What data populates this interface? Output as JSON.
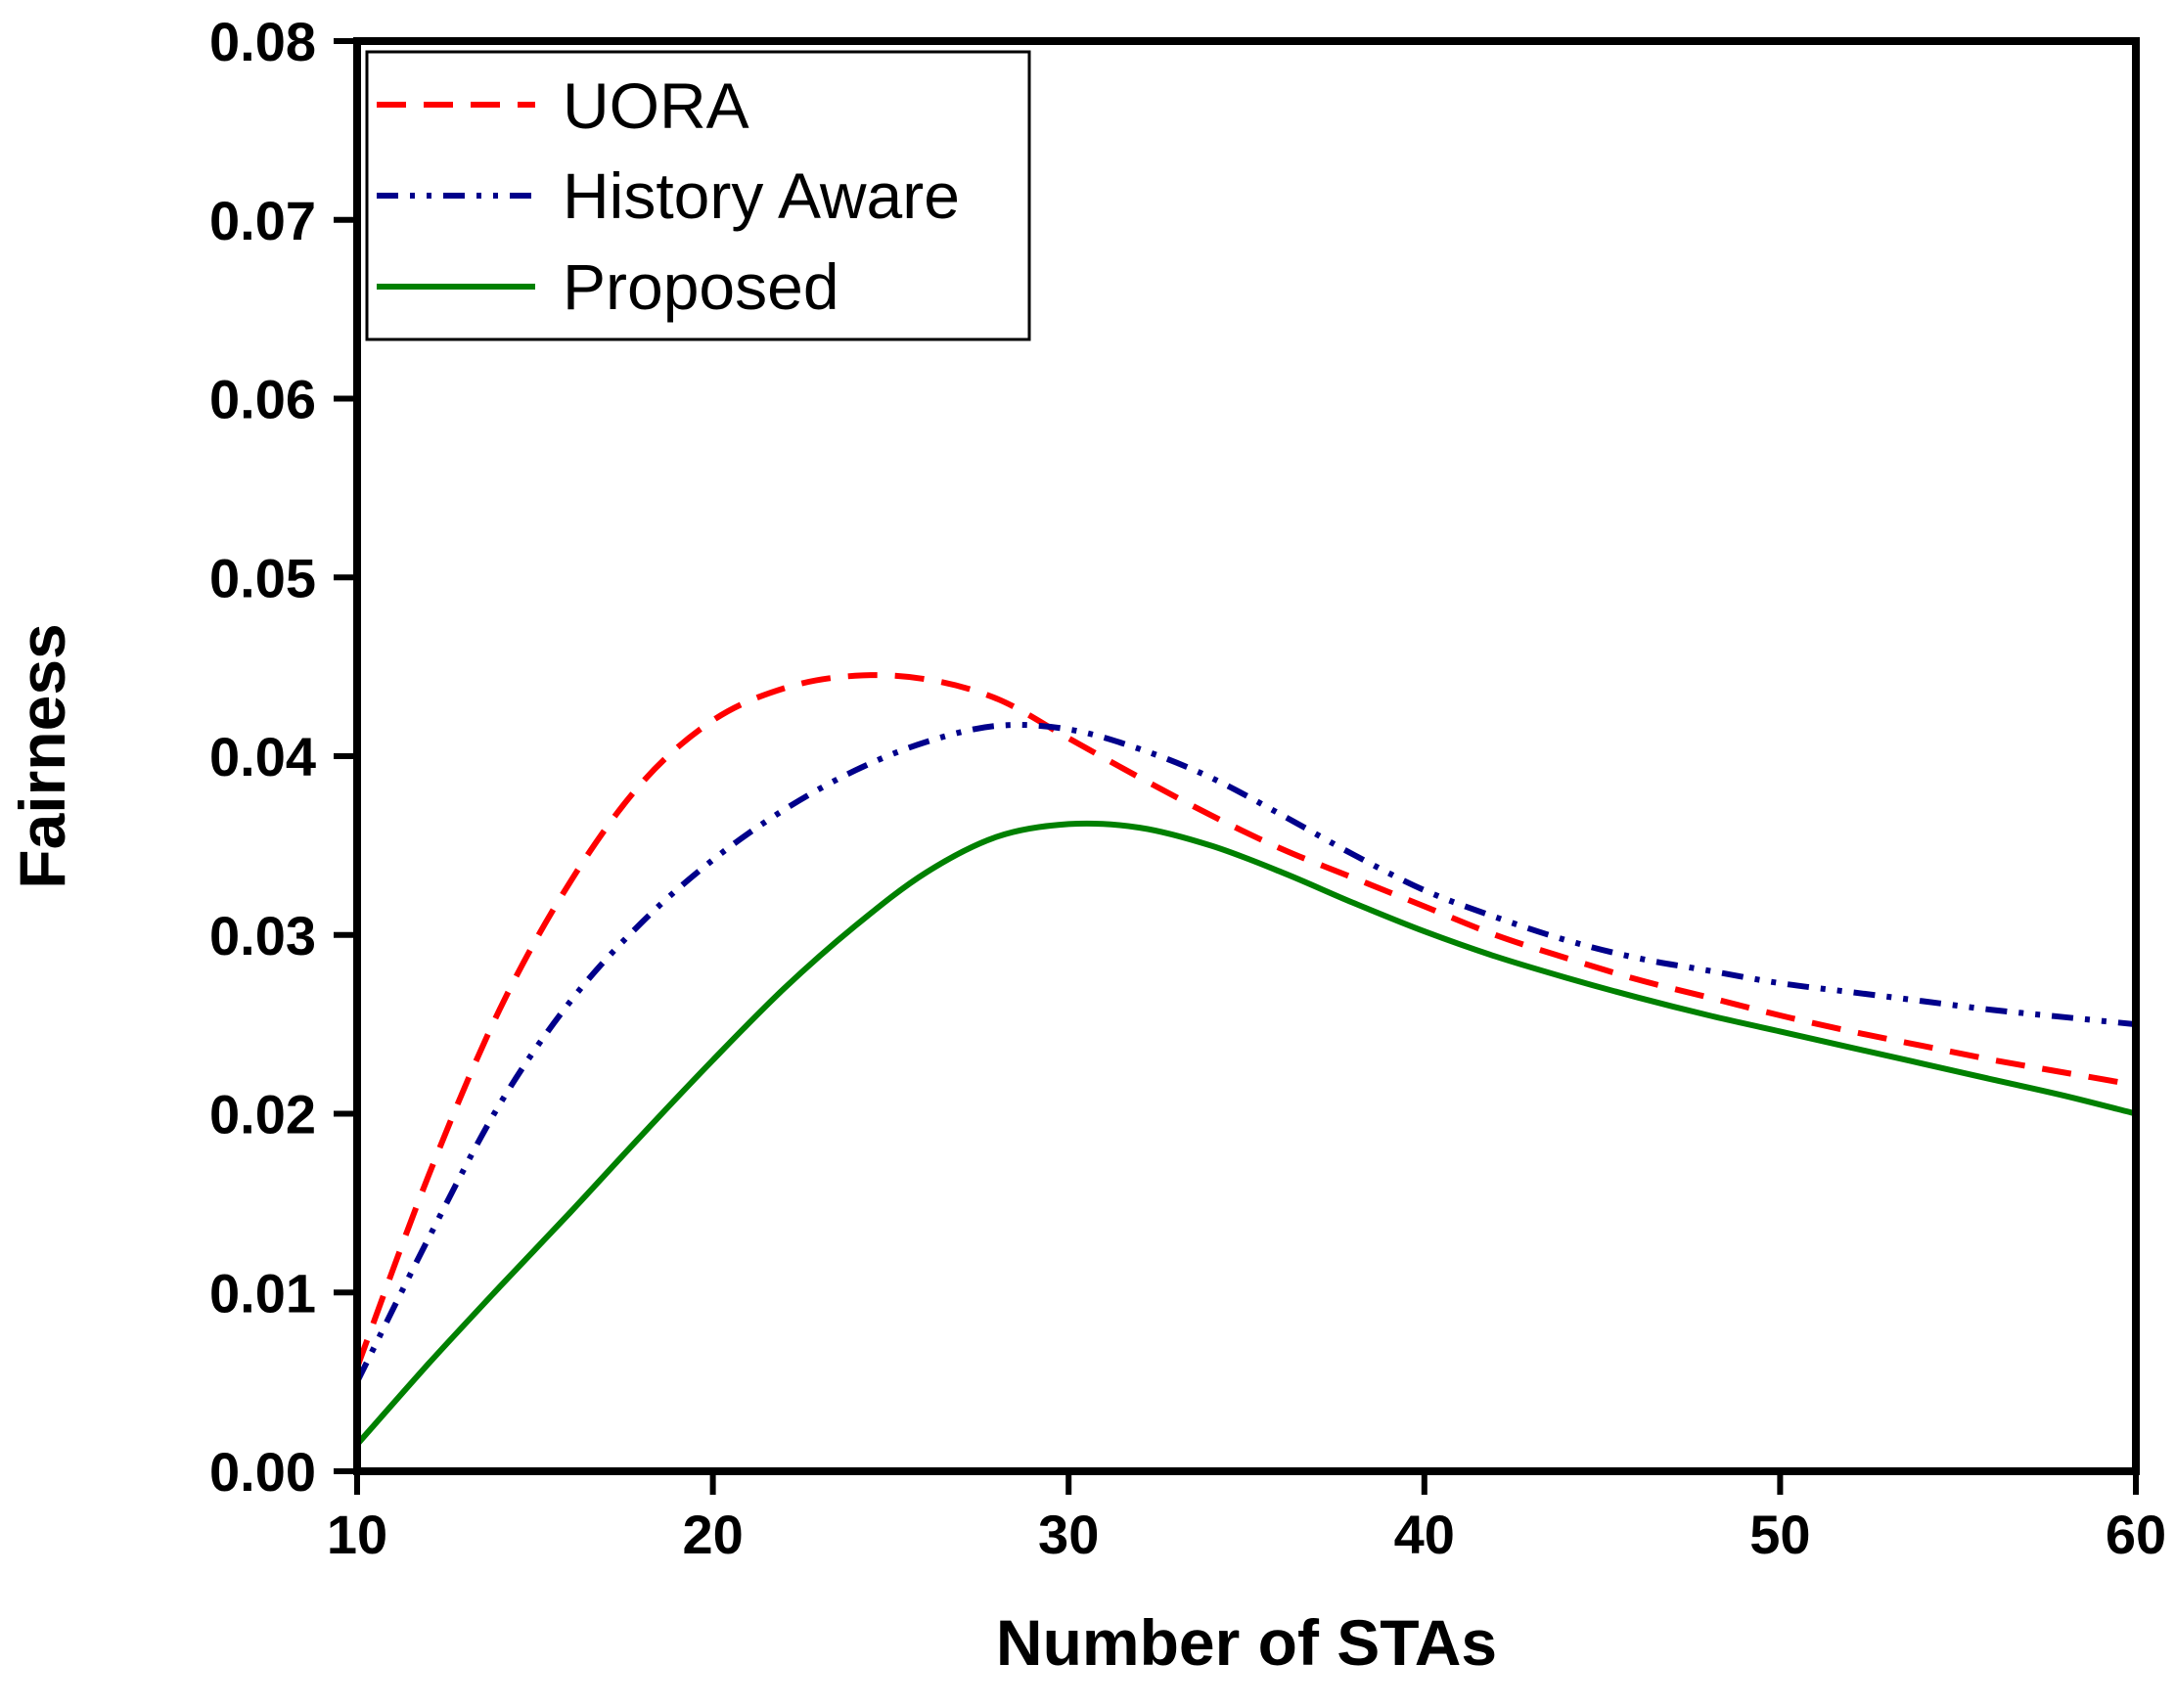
{
  "chart_data": {
    "type": "line",
    "title": "",
    "xlabel": "Number of STAs",
    "ylabel": "Fairness",
    "xlim": [
      10,
      60
    ],
    "ylim": [
      0,
      0.08
    ],
    "xticks": [
      10,
      20,
      30,
      40,
      50,
      60
    ],
    "xtick_labels": [
      "10",
      "20",
      "30",
      "40",
      "50",
      "60"
    ],
    "yticks": [
      0,
      0.01,
      0.02,
      0.03,
      0.04,
      0.05,
      0.06,
      0.07,
      0.08
    ],
    "ytick_labels": [
      "0.00",
      "0.01",
      "0.02",
      "0.03",
      "0.04",
      "0.05",
      "0.06",
      "0.07",
      "0.08"
    ],
    "grid": false,
    "legend_position": "top-left",
    "series": [
      {
        "name": "UORA",
        "color": "#ff0000",
        "style": "dashed",
        "x": [
          10,
          12,
          14,
          16,
          18,
          20,
          22,
          24,
          26,
          28,
          30,
          32,
          34,
          36,
          38,
          40,
          42,
          44,
          46,
          48,
          50,
          52,
          54,
          56,
          58,
          60
        ],
        "y": [
          0.0058,
          0.0165,
          0.0258,
          0.033,
          0.0385,
          0.042,
          0.0438,
          0.0445,
          0.0443,
          0.0432,
          0.041,
          0.0388,
          0.0367,
          0.0348,
          0.0332,
          0.0316,
          0.03,
          0.0287,
          0.0275,
          0.0265,
          0.0255,
          0.0246,
          0.0238,
          0.023,
          0.0223,
          0.0216
        ]
      },
      {
        "name": "History Aware",
        "color": "#00008b",
        "style": "dash-dot-dot",
        "x": [
          10,
          12,
          14,
          16,
          18,
          20,
          22,
          24,
          26,
          28,
          30,
          32,
          34,
          36,
          38,
          40,
          42,
          44,
          46,
          48,
          50,
          52,
          54,
          56,
          58,
          60
        ],
        "y": [
          0.005,
          0.013,
          0.0205,
          0.0263,
          0.0307,
          0.0342,
          0.037,
          0.0392,
          0.0408,
          0.0417,
          0.0415,
          0.0404,
          0.0388,
          0.0367,
          0.0345,
          0.0325,
          0.031,
          0.0297,
          0.0287,
          0.028,
          0.0273,
          0.0268,
          0.0263,
          0.0258,
          0.0254,
          0.025
        ]
      },
      {
        "name": "Proposed",
        "color": "#008000",
        "style": "solid",
        "x": [
          10,
          12,
          14,
          16,
          18,
          20,
          22,
          24,
          26,
          28,
          30,
          32,
          34,
          36,
          38,
          40,
          42,
          44,
          46,
          48,
          50,
          52,
          54,
          56,
          58,
          60
        ],
        "y": [
          0.0015,
          0.006,
          0.0103,
          0.0145,
          0.0188,
          0.023,
          0.027,
          0.0305,
          0.0335,
          0.0355,
          0.0362,
          0.036,
          0.035,
          0.0335,
          0.0318,
          0.0302,
          0.0288,
          0.0276,
          0.0265,
          0.0255,
          0.0246,
          0.0237,
          0.0228,
          0.0219,
          0.021,
          0.02
        ]
      }
    ]
  }
}
